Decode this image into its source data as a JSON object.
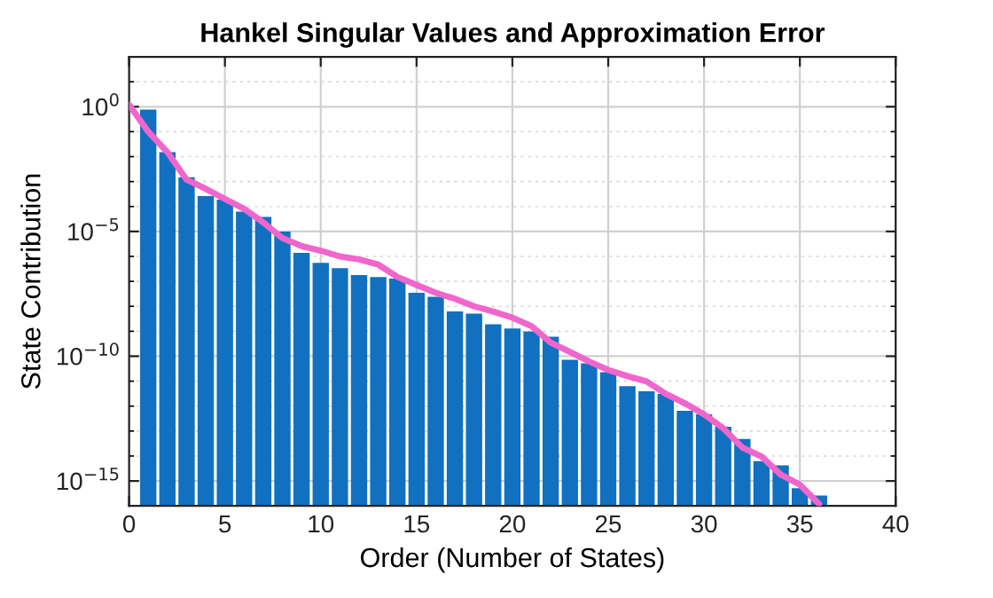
{
  "chart_data": {
    "type": "bar",
    "title": "Hankel Singular Values and Approximation Error",
    "xlabel": "Order (Number of States)",
    "ylabel": "State Contribution",
    "log": "y",
    "grid": true,
    "xlim": [
      0,
      40
    ],
    "xticks": [
      0,
      5,
      10,
      15,
      20,
      25,
      30,
      35,
      40
    ],
    "ylim": [
      1e-16,
      100
    ],
    "yticks": [
      {
        "value": 1e-15,
        "label": "10$^{−15}$"
      },
      {
        "value": 1e-10,
        "label": "10$^{−10}$"
      },
      {
        "value": 1e-05,
        "label": "10$^{−5}$"
      },
      {
        "value": 1,
        "label": "10$^{0}$"
      }
    ],
    "series": [
      {
        "color": "#1170c0",
        "x": [
          1,
          2,
          3,
          4,
          5,
          6,
          7,
          8,
          9,
          10,
          11,
          12,
          13,
          14,
          15,
          16,
          17,
          18,
          19,
          20,
          21,
          22,
          23,
          24,
          25,
          26,
          27,
          28,
          29,
          30,
          31,
          32,
          33,
          34,
          35,
          36
        ],
        "values": [
          0.76,
          0.015,
          0.0015,
          0.00026,
          0.00019,
          6.2e-05,
          3.8e-05,
          1e-05,
          1.4e-06,
          5.5e-07,
          3.4e-07,
          1.8e-07,
          1.5e-07,
          1.3e-07,
          3.5e-08,
          2.4e-08,
          6.2e-09,
          5.1e-09,
          1.9e-09,
          1.3e-09,
          9.8e-10,
          6e-10,
          7.2e-11,
          5.2e-11,
          2.3e-11,
          6.3e-12,
          3.9e-12,
          3.1e-12,
          6.5e-13,
          4.7e-13,
          1.5e-13,
          4.8e-14,
          6.2e-15,
          4.2e-15,
          5.1e-16,
          2.6e-16
        ]
      },
      {
        "type": "line",
        "color": "#f066cc",
        "x": [
          0,
          1,
          2,
          3,
          4,
          5,
          6,
          7,
          8,
          9,
          10,
          11,
          12,
          13,
          14,
          15,
          16,
          17,
          18,
          19,
          20,
          21,
          22,
          23,
          24,
          25,
          26,
          27,
          28,
          29,
          30,
          31,
          32,
          33,
          34,
          35,
          36
        ],
        "values": [
          1.2,
          0.1,
          0.015,
          0.0012,
          0.00051,
          0.0002,
          8.1e-05,
          2.3e-05,
          5.4e-06,
          2.6e-06,
          1.7e-06,
          1e-06,
          7.6e-07,
          4.7e-07,
          1.5e-07,
          7.1e-08,
          3.5e-08,
          2e-08,
          1e-08,
          6.2e-09,
          3.5e-09,
          1.6e-09,
          3.5e-10,
          1.5e-10,
          6.2e-11,
          2.8e-11,
          1.6e-11,
          9.8e-12,
          3.1e-12,
          1.3e-12,
          4.7e-13,
          1.3e-13,
          2.2e-14,
          9.5e-15,
          1.8e-15,
          7.1e-16,
          1.2e-16
        ]
      }
    ]
  }
}
